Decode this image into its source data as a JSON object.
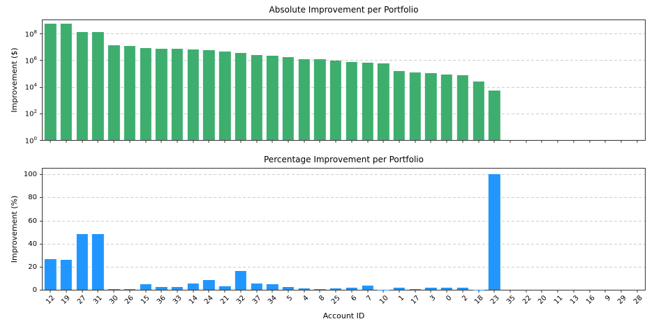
{
  "figure": {
    "background": "#ffffff",
    "grid_color": "#cccccc",
    "spine_color": "#333333"
  },
  "chart_data": [
    {
      "id": "absolute",
      "type": "bar",
      "title": "Absolute Improvement per Portfolio",
      "ylabel": "Improvement ($)",
      "scale": "log",
      "ymax_exp": 9,
      "bar_color": "#3eae6e",
      "grid": true,
      "y_ticks": [
        {
          "label": "10⁰",
          "exp": 0
        },
        {
          "label": "10²",
          "exp": 2
        },
        {
          "label": "10⁴",
          "exp": 4
        },
        {
          "label": "10⁶",
          "exp": 6
        },
        {
          "label": "10⁸",
          "exp": 8
        }
      ],
      "show_x_labels": false,
      "categories": [
        "12",
        "19",
        "27",
        "31",
        "30",
        "26",
        "15",
        "36",
        "33",
        "14",
        "24",
        "21",
        "32",
        "37",
        "34",
        "5",
        "4",
        "8",
        "25",
        "6",
        "7",
        "10",
        "1",
        "17",
        "3",
        "0",
        "2",
        "18",
        "23",
        "35",
        "22",
        "20",
        "11",
        "13",
        "16",
        "9",
        "29",
        "28"
      ],
      "values": [
        530000000,
        520000000,
        130000000,
        125000000,
        12500000,
        12000000,
        8300000,
        7000000,
        6800000,
        6500000,
        5500000,
        4600000,
        3400000,
        2300000,
        2200000,
        1700000,
        1250000,
        1150000,
        930000,
        710000,
        680000,
        560000,
        160000,
        120000,
        100000,
        79000,
        70000,
        26000,
        5500,
        0,
        0,
        0,
        0,
        0,
        0,
        0,
        0,
        0
      ]
    },
    {
      "id": "percentage",
      "type": "bar",
      "title": "Percentage Improvement per Portfolio",
      "ylabel": "Improvement (%)",
      "xlabel": "Account ID",
      "scale": "linear",
      "ymax": 105,
      "bar_color": "#2196ff",
      "grid": true,
      "y_ticks": [
        {
          "label": "0",
          "value": 0
        },
        {
          "label": "20",
          "value": 20
        },
        {
          "label": "40",
          "value": 40
        },
        {
          "label": "60",
          "value": 60
        },
        {
          "label": "80",
          "value": 80
        },
        {
          "label": "100",
          "value": 100
        }
      ],
      "show_x_labels": true,
      "categories": [
        "12",
        "19",
        "27",
        "31",
        "30",
        "26",
        "15",
        "36",
        "33",
        "14",
        "24",
        "21",
        "32",
        "37",
        "34",
        "5",
        "4",
        "8",
        "25",
        "6",
        "7",
        "10",
        "1",
        "17",
        "3",
        "0",
        "2",
        "18",
        "23",
        "35",
        "22",
        "20",
        "11",
        "13",
        "16",
        "9",
        "29",
        "28"
      ],
      "values": [
        26.5,
        26,
        48.5,
        48.5,
        0.8,
        0.6,
        5,
        2.3,
        2.5,
        5.5,
        8.5,
        3,
        16,
        5.5,
        5,
        2.5,
        1,
        0.5,
        1.5,
        2,
        3.5,
        0.15,
        1.8,
        0.5,
        2,
        2,
        2,
        0.1,
        100,
        0,
        0,
        0,
        0,
        0,
        0,
        0,
        0,
        0
      ]
    }
  ]
}
